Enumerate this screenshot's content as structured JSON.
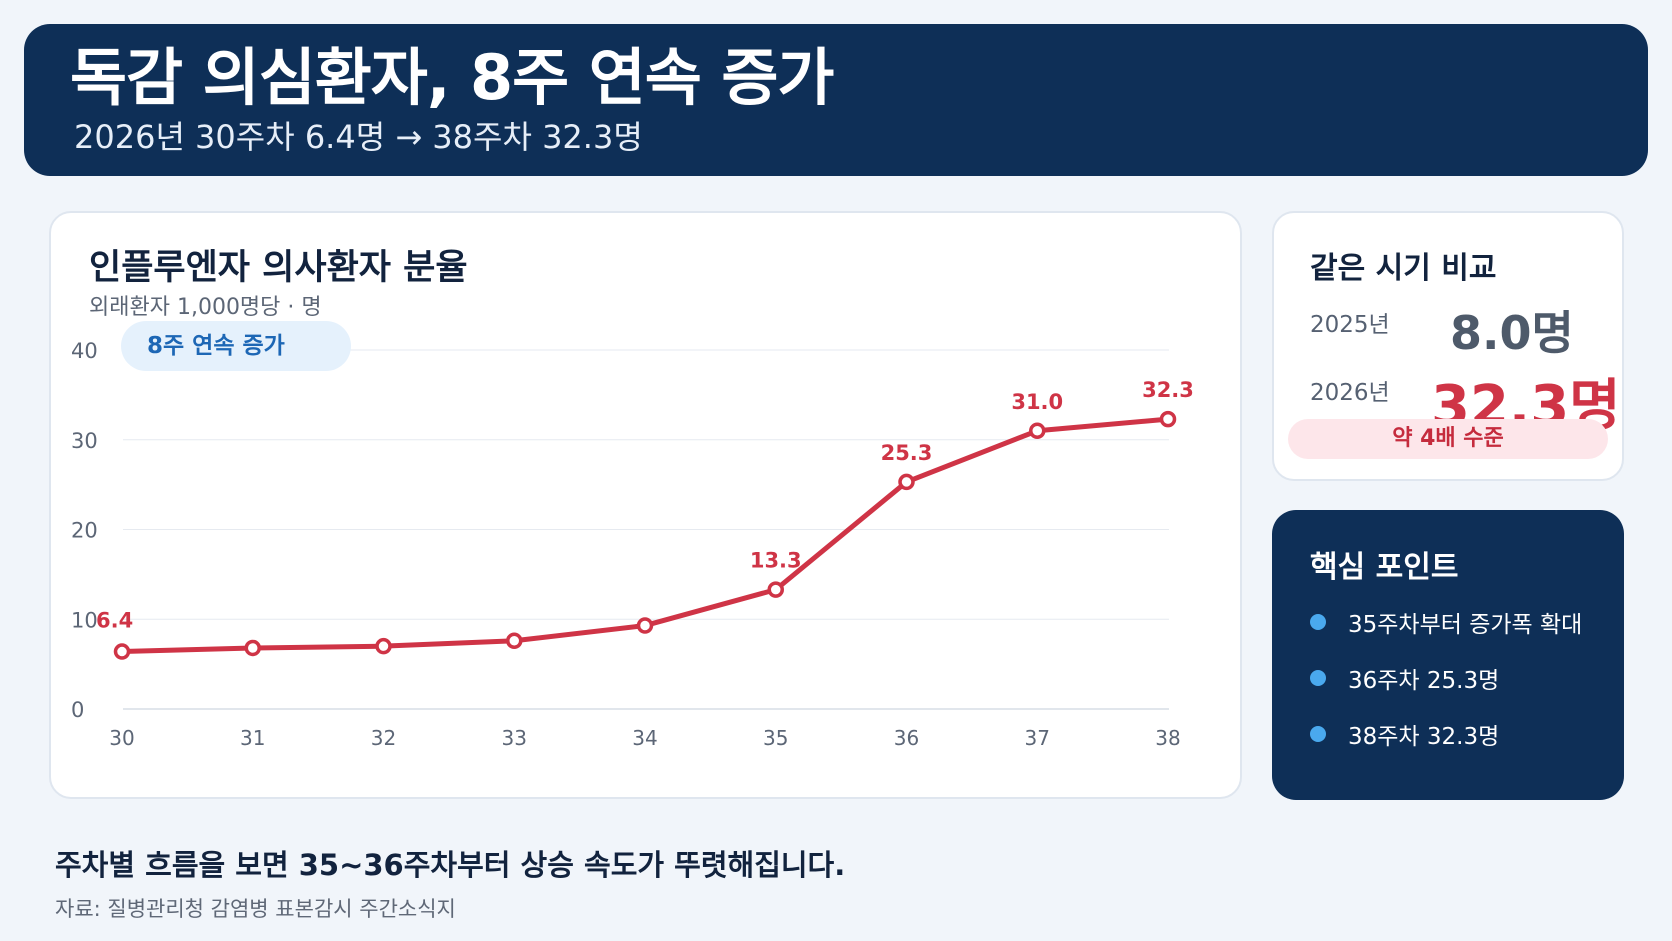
{
  "header": {
    "title": "독감 의심환자, 8주 연속 증가",
    "subtitle": "2026년 30주차 6.4명 → 38주차 32.3명"
  },
  "chart_data": {
    "type": "line",
    "title": "인플루엔자 의사환자 분율",
    "subtitle": "외래환자 1,000명당 · 명",
    "badge": "8주 연속 증가",
    "x": [
      30,
      31,
      32,
      33,
      34,
      35,
      36,
      37,
      38
    ],
    "x_tick_labels": [
      "30",
      "31",
      "32",
      "33",
      "34",
      "35",
      "36",
      "37",
      "38"
    ],
    "y_ticks": [
      0,
      10,
      20,
      30,
      40
    ],
    "y_tick_labels": [
      "0",
      "10",
      "20",
      "30",
      "40"
    ],
    "ylim": [
      0,
      40
    ],
    "series": [
      {
        "values": [
          6.4,
          6.8,
          7.0,
          7.6,
          9.3,
          13.3,
          25.3,
          31.0,
          32.3
        ],
        "color": "#cf3446"
      }
    ],
    "data_labels": [
      {
        "index": 0,
        "text": "6.4"
      },
      {
        "index": 5,
        "text": "13.3"
      },
      {
        "index": 6,
        "text": "25.3"
      },
      {
        "index": 7,
        "text": "31.0"
      },
      {
        "index": 8,
        "text": "32.3"
      }
    ],
    "grid": true,
    "legend": "none"
  },
  "comparison": {
    "title": "같은 시기 비교",
    "prev_year": "2025년",
    "prev_value": "8.0명",
    "curr_year": "2026년",
    "curr_value": "32.3명",
    "badge": "약 4배 수준"
  },
  "key_points": {
    "title": "핵심 포인트",
    "items": [
      {
        "text": "35주차부터 증가폭 확대"
      },
      {
        "text": "36주차 25.3명"
      },
      {
        "text": "38주차 32.3명"
      }
    ]
  },
  "footer": {
    "summary": "주차별 흐름을 보면 35~36주차부터 상승 속도가 뚜렷해집니다.",
    "source": "자료: 질병관리청 감염병 표본감시 주간소식지"
  },
  "colors": {
    "navy": "#0e2f57",
    "accent_red": "#cf3446",
    "accent_blue": "#1d67b5",
    "dot_blue": "#4aa9ee"
  }
}
